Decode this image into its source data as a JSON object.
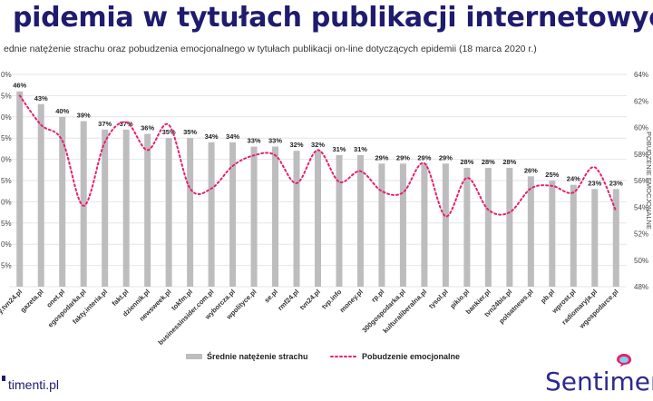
{
  "header": {
    "title": "pidemia w tytułach publikacji internetowych",
    "subtitle": "ednie natężenie strachu oraz pobudzenia emocjonalnego w tytułach publikacji on-line dotyczących epidemii (18 marca 2020 r.)"
  },
  "footer": {
    "site": "timenti.pl",
    "brand": "Sentimenti"
  },
  "colors": {
    "bar": "#bdbdbd",
    "line": "#e8206e",
    "title": "#1f1b6e",
    "brand": "#2c2a8f",
    "grid": "#e6e6e6"
  },
  "chart_data": {
    "type": "bar",
    "categories": [
      "tvn24.pl",
      "gazeta.pl",
      "onet.pl",
      "egospodarka.pl",
      "fakty.interia.pl",
      "fakt.pl",
      "dziennik.pl",
      "newsweek.pl",
      "tokfm.pl",
      "businessinsider.com.pl",
      "wyborcza.pl",
      "wpolityce.pl",
      "se.pl",
      "rmf24.pl",
      "tvn24.pl",
      "tvp.info",
      "money.pl",
      "rp.pl",
      "300gospodarka.pl",
      "kulturaliberalna.pl",
      "tysol.pl",
      "pikio.pl",
      "bankier.pl",
      "tvn24bis.pl",
      "polsatnews.pl",
      "pb.pl",
      "wprost.pl",
      "radiomaryja.pl",
      "wgospodarce.pl"
    ],
    "category_labels_visible": [
      "y.tvn24.pl",
      "gazeta.pl",
      "onet.pl",
      "egospodarka.pl",
      "fakty.interia.pl",
      "fakt.pl",
      "dziennik.pl",
      "newsweek.pl",
      "tokfm.pl",
      "businessinsider.com.pl",
      "wyborcza.pl",
      "wpolityce.pl",
      "se.pl",
      "rmf24.pl",
      "tvn24.pl",
      "tvp.info",
      "money.pl",
      "rp.pl",
      "300gospodarka.pl",
      "kulturaliberalna.pl",
      "tysol.pl",
      "pikio.pl",
      "bankier.pl",
      "tvn24bis.pl",
      "polsatnews.pl",
      "pb.pl",
      "wprost.pl",
      "radiomaryja.pl",
      "wgospodarce.pl"
    ],
    "series": [
      {
        "name": "Średnie natężenie strachu",
        "type": "bar",
        "axis": "left",
        "values": [
          46,
          43,
          40,
          39,
          37,
          37,
          36,
          35,
          35,
          34,
          34,
          33,
          33,
          32,
          32,
          31,
          31,
          29,
          29,
          29,
          29,
          28,
          28,
          28,
          26,
          25,
          24,
          23,
          23
        ],
        "labels": [
          "46%",
          "43%",
          "40%",
          "39%",
          "37%",
          "37%",
          "36%",
          "35%",
          "35%",
          "34%",
          "34%",
          "33%",
          "33%",
          "32%",
          "32%",
          "31%",
          "31%",
          "29%",
          "29%",
          "29%",
          "29%",
          "28%",
          "28%",
          "28%",
          "26%",
          "25%",
          "24%",
          "23%",
          "23%"
        ]
      },
      {
        "name": "Pobudzenie emocjonalne",
        "type": "line",
        "axis": "right",
        "values": [
          62.4,
          60.2,
          59.0,
          54.1,
          58.9,
          60.4,
          58.3,
          60.2,
          55.4,
          55.4,
          57.1,
          57.9,
          57.9,
          55.8,
          58.3,
          55.9,
          56.7,
          55.2,
          55.1,
          57.3,
          53.3,
          56.2,
          53.8,
          53.6,
          55.4,
          55.6,
          55.1,
          57.0,
          53.7
        ]
      }
    ],
    "y_left": {
      "min": 0,
      "max": 50,
      "tick_labels": [
        "",
        "5%",
        "0%",
        "5%",
        "0%",
        "5%",
        "0%",
        "5%",
        "0%",
        "5%",
        "0%"
      ]
    },
    "y_right": {
      "min": 48,
      "max": 64,
      "tick_labels": [
        "48%",
        "50%",
        "52%",
        "54%",
        "56%",
        "58%",
        "60%",
        "62%",
        "64%"
      ]
    },
    "y_right_title": "POBUDZENIE EMOCJONALNE",
    "grid": true,
    "legend_position": "bottom"
  }
}
